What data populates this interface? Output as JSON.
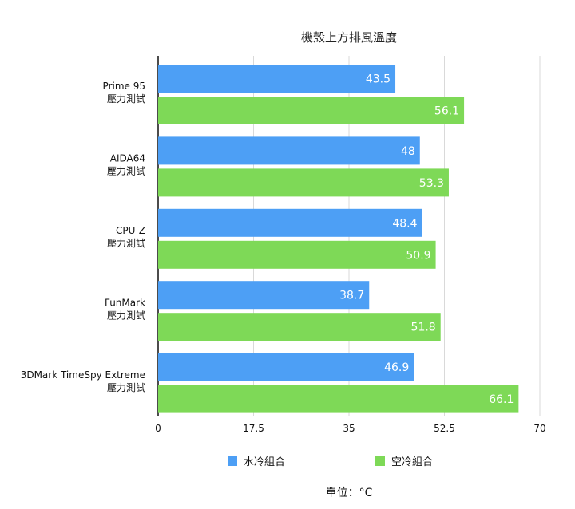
{
  "chart_data": {
    "type": "bar",
    "orientation": "horizontal",
    "title": "機殼上方排風溫度",
    "unit_label": "單位：°C",
    "categories": [
      [
        "Prime 95",
        "壓力測試"
      ],
      [
        "AIDA64",
        "壓力測試"
      ],
      [
        "CPU-Z",
        "壓力測試"
      ],
      [
        "FunMark",
        "壓力測試"
      ],
      [
        "3DMark TimeSpy Extreme",
        "壓力測試"
      ]
    ],
    "series": [
      {
        "name": "水冷組合",
        "color": "#4d9ff5",
        "values": [
          43.5,
          48,
          48.4,
          38.7,
          46.9
        ]
      },
      {
        "name": "空冷組合",
        "color": "#7ed957",
        "values": [
          56.1,
          53.3,
          50.9,
          51.8,
          66.1
        ]
      }
    ],
    "xlim": [
      0,
      70
    ],
    "xticks": [
      0,
      17.5,
      35,
      52.5,
      70
    ],
    "xtick_labels": [
      "0",
      "17.5",
      "35",
      "52.5",
      "70"
    ],
    "grid": true,
    "legend_position": "bottom"
  }
}
